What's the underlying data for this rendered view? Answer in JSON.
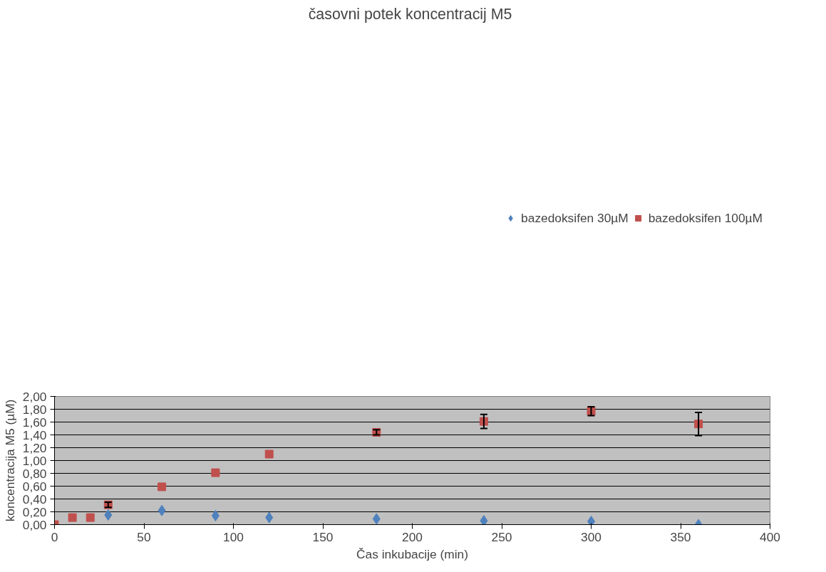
{
  "chart_data": {
    "type": "scatter",
    "title": "časovni potek koncentracij  M5",
    "xlabel": "Čas inkubacije (min)",
    "ylabel": "koncentracija M5 (µM)",
    "x": [
      0,
      10,
      20,
      30,
      60,
      90,
      120,
      180,
      240,
      300,
      360
    ],
    "series": [
      {
        "name": "bazedoksifen 30µM",
        "color": "#4f81bd",
        "marker": "diamond",
        "x": [
          30,
          60,
          90,
          120,
          180,
          240,
          300,
          360
        ],
        "values": [
          0.15,
          0.22,
          0.14,
          0.11,
          0.09,
          0.06,
          0.05,
          0.0
        ]
      },
      {
        "name": "bazedoksifen 100µM",
        "color": "#c0504d",
        "marker": "square",
        "values": [
          0.0,
          0.11,
          0.11,
          0.31,
          0.59,
          0.81,
          1.1,
          1.44,
          1.61,
          1.77,
          1.57
        ],
        "errors": [
          null,
          null,
          null,
          0.04,
          null,
          null,
          null,
          0.04,
          0.11,
          0.07,
          0.18
        ]
      }
    ],
    "xlim": [
      0,
      400
    ],
    "xticks": [
      0,
      50,
      100,
      150,
      200,
      250,
      300,
      350,
      400
    ],
    "ylim": [
      0,
      2
    ],
    "yticks": [
      {
        "value": 0,
        "label": "0,00"
      },
      {
        "value": 0.2,
        "label": "0,20"
      },
      {
        "value": 0.4,
        "label": "0,40"
      },
      {
        "value": 0.6,
        "label": "0,60"
      },
      {
        "value": 0.8,
        "label": "0,80"
      },
      {
        "value": 1.0,
        "label": "1,00"
      },
      {
        "value": 1.2,
        "label": "1,20"
      },
      {
        "value": 1.4,
        "label": "1,40"
      },
      {
        "value": 1.6,
        "label": "1,60"
      },
      {
        "value": 1.8,
        "label": "1,80"
      },
      {
        "value": 2.0,
        "label": "2,00"
      }
    ],
    "grid": "y",
    "legend": "top"
  }
}
